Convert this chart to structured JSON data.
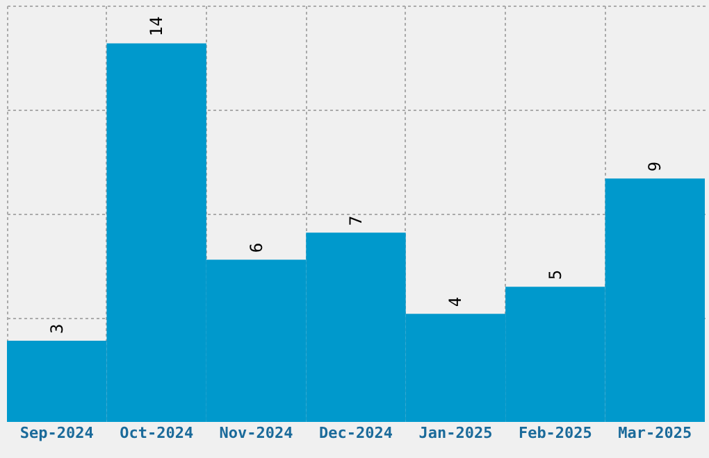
{
  "chart_data": {
    "type": "bar",
    "categories": [
      "Sep-2024",
      "Oct-2024",
      "Nov-2024",
      "Dec-2024",
      "Jan-2025",
      "Feb-2025",
      "Mar-2025"
    ],
    "values": [
      3,
      14,
      6,
      7,
      4,
      5,
      9
    ],
    "color": "#0099cc",
    "data_labels": true,
    "ylim": [
      0,
      15.4
    ],
    "yticks": [
      {
        "value": 3.85,
        "label": null
      },
      {
        "value": 7.7,
        "label": null
      },
      {
        "value": 11.55,
        "label": null
      },
      {
        "value": 15.4,
        "label": null
      }
    ],
    "grid": true,
    "tick_labels": "x"
  }
}
